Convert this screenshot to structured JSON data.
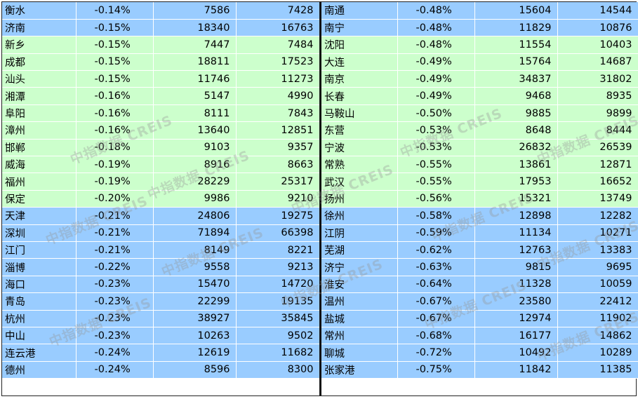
{
  "watermark": "中指数据 CREIS",
  "colors": {
    "blue": "#99ccff",
    "green": "#ccffcc"
  },
  "left_rows": [
    {
      "city": "衡水",
      "change": "-0.14%",
      "v1": "7586",
      "v2": "7428",
      "color": "blue"
    },
    {
      "city": "济南",
      "change": "-0.15%",
      "v1": "18340",
      "v2": "16763",
      "color": "blue"
    },
    {
      "city": "新乡",
      "change": "-0.15%",
      "v1": "7447",
      "v2": "7484",
      "color": "green"
    },
    {
      "city": "成都",
      "change": "-0.15%",
      "v1": "18811",
      "v2": "17523",
      "color": "green"
    },
    {
      "city": "汕头",
      "change": "-0.15%",
      "v1": "11746",
      "v2": "11273",
      "color": "green"
    },
    {
      "city": "湘潭",
      "change": "-0.16%",
      "v1": "5147",
      "v2": "4990",
      "color": "green"
    },
    {
      "city": "阜阳",
      "change": "-0.16%",
      "v1": "8111",
      "v2": "7843",
      "color": "green"
    },
    {
      "city": "漳州",
      "change": "-0.16%",
      "v1": "13640",
      "v2": "12851",
      "color": "green"
    },
    {
      "city": "邯郸",
      "change": "-0.18%",
      "v1": "9103",
      "v2": "9357",
      "color": "green"
    },
    {
      "city": "威海",
      "change": "-0.19%",
      "v1": "8916",
      "v2": "8663",
      "color": "green"
    },
    {
      "city": "福州",
      "change": "-0.19%",
      "v1": "28229",
      "v2": "25317",
      "color": "green"
    },
    {
      "city": "保定",
      "change": "-0.20%",
      "v1": "9986",
      "v2": "9210",
      "color": "green"
    },
    {
      "city": "天津",
      "change": "-0.21%",
      "v1": "24806",
      "v2": "19275",
      "color": "blue"
    },
    {
      "city": "深圳",
      "change": "-0.21%",
      "v1": "71894",
      "v2": "66398",
      "color": "blue"
    },
    {
      "city": "江门",
      "change": "-0.21%",
      "v1": "8149",
      "v2": "8221",
      "color": "blue"
    },
    {
      "city": "淄博",
      "change": "-0.22%",
      "v1": "9558",
      "v2": "9213",
      "color": "blue"
    },
    {
      "city": "海口",
      "change": "-0.23%",
      "v1": "15470",
      "v2": "14720",
      "color": "blue"
    },
    {
      "city": "青岛",
      "change": "-0.23%",
      "v1": "22299",
      "v2": "19135",
      "color": "blue"
    },
    {
      "city": "杭州",
      "change": "-0.23%",
      "v1": "38927",
      "v2": "35845",
      "color": "blue"
    },
    {
      "city": "中山",
      "change": "-0.23%",
      "v1": "10263",
      "v2": "9502",
      "color": "blue"
    },
    {
      "city": "连云港",
      "change": "-0.24%",
      "v1": "12619",
      "v2": "11682",
      "color": "blue"
    },
    {
      "city": "德州",
      "change": "-0.24%",
      "v1": "8596",
      "v2": "8300",
      "color": "blue"
    }
  ],
  "right_rows": [
    {
      "city": "南通",
      "change": "-0.48%",
      "v1": "15604",
      "v2": "14544",
      "color": "blue"
    },
    {
      "city": "南宁",
      "change": "-0.48%",
      "v1": "11829",
      "v2": "10876",
      "color": "blue"
    },
    {
      "city": "沈阳",
      "change": "-0.48%",
      "v1": "11554",
      "v2": "10403",
      "color": "green"
    },
    {
      "city": "大连",
      "change": "-0.49%",
      "v1": "15764",
      "v2": "14687",
      "color": "green"
    },
    {
      "city": "南京",
      "change": "-0.49%",
      "v1": "34837",
      "v2": "31802",
      "color": "green"
    },
    {
      "city": "长春",
      "change": "-0.49%",
      "v1": "9468",
      "v2": "8935",
      "color": "green"
    },
    {
      "city": "马鞍山",
      "change": "-0.50%",
      "v1": "9885",
      "v2": "9899",
      "color": "green"
    },
    {
      "city": "东营",
      "change": "-0.53%",
      "v1": "8648",
      "v2": "8444",
      "color": "green"
    },
    {
      "city": "宁波",
      "change": "-0.53%",
      "v1": "26832",
      "v2": "26539",
      "color": "green"
    },
    {
      "city": "常熟",
      "change": "-0.55%",
      "v1": "13861",
      "v2": "12871",
      "color": "green"
    },
    {
      "city": "武汉",
      "change": "-0.55%",
      "v1": "17953",
      "v2": "16652",
      "color": "green"
    },
    {
      "city": "扬州",
      "change": "-0.56%",
      "v1": "15321",
      "v2": "13749",
      "color": "green"
    },
    {
      "city": "徐州",
      "change": "-0.58%",
      "v1": "12898",
      "v2": "12282",
      "color": "blue"
    },
    {
      "city": "江阴",
      "change": "-0.59%",
      "v1": "11134",
      "v2": "10271",
      "color": "blue"
    },
    {
      "city": "芜湖",
      "change": "-0.62%",
      "v1": "12763",
      "v2": "13383",
      "color": "blue"
    },
    {
      "city": "济宁",
      "change": "-0.63%",
      "v1": "9815",
      "v2": "9695",
      "color": "blue"
    },
    {
      "city": "淮安",
      "change": "-0.64%",
      "v1": "11328",
      "v2": "10059",
      "color": "blue"
    },
    {
      "city": "温州",
      "change": "-0.67%",
      "v1": "23580",
      "v2": "22412",
      "color": "blue"
    },
    {
      "city": "盐城",
      "change": "-0.67%",
      "v1": "12974",
      "v2": "11902",
      "color": "blue"
    },
    {
      "city": "常州",
      "change": "-0.68%",
      "v1": "16177",
      "v2": "14862",
      "color": "blue"
    },
    {
      "city": "聊城",
      "change": "-0.72%",
      "v1": "10492",
      "v2": "10289",
      "color": "blue"
    },
    {
      "city": "张家港",
      "change": "-0.75%",
      "v1": "11842",
      "v2": "11385",
      "color": "blue"
    }
  ]
}
